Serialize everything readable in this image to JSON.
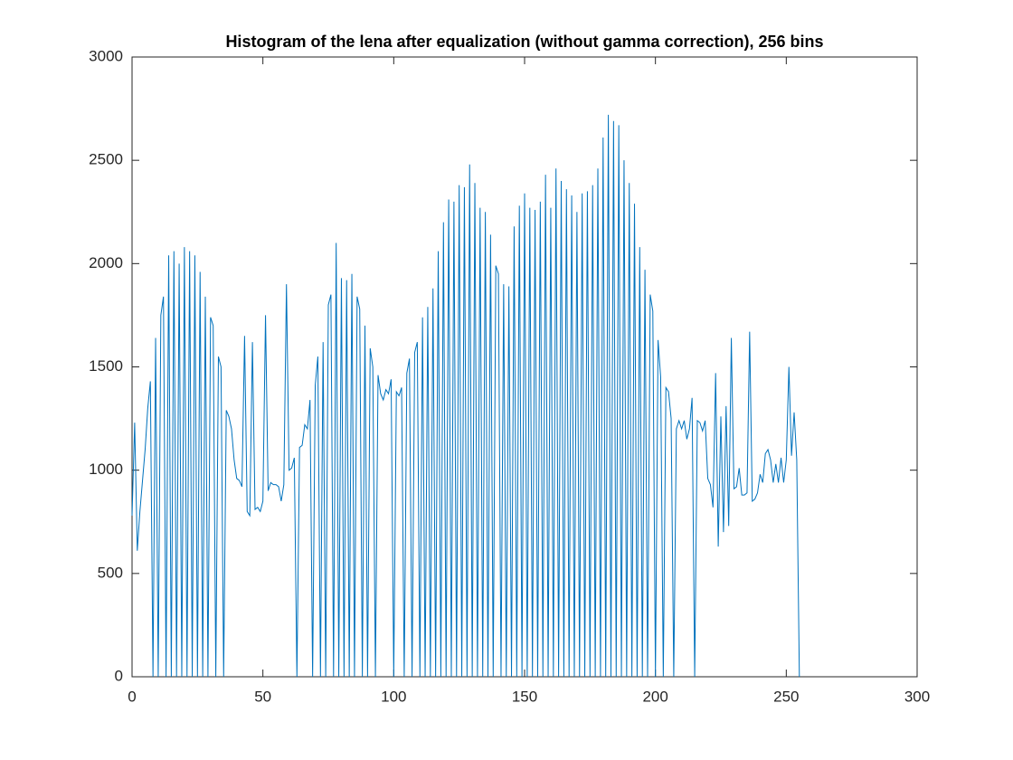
{
  "chart_data": {
    "type": "line",
    "title": "Histogram of the lena after equalization (without gamma correction), 256 bins",
    "x": [
      0,
      1,
      2,
      3,
      4,
      5,
      6,
      7,
      8,
      9,
      10,
      11,
      12,
      13,
      14,
      15,
      16,
      17,
      18,
      19,
      20,
      21,
      22,
      23,
      24,
      25,
      26,
      27,
      28,
      29,
      30,
      31,
      32,
      33,
      34,
      35,
      36,
      37,
      38,
      39,
      40,
      41,
      42,
      43,
      44,
      45,
      46,
      47,
      48,
      49,
      50,
      51,
      52,
      53,
      54,
      55,
      56,
      57,
      58,
      59,
      60,
      61,
      62,
      63,
      64,
      65,
      66,
      67,
      68,
      69,
      70,
      71,
      72,
      73,
      74,
      75,
      76,
      77,
      78,
      79,
      80,
      81,
      82,
      83,
      84,
      85,
      86,
      87,
      88,
      89,
      90,
      91,
      92,
      93,
      94,
      95,
      96,
      97,
      98,
      99,
      100,
      101,
      102,
      103,
      104,
      105,
      106,
      107,
      108,
      109,
      110,
      111,
      112,
      113,
      114,
      115,
      116,
      117,
      118,
      119,
      120,
      121,
      122,
      123,
      124,
      125,
      126,
      127,
      128,
      129,
      130,
      131,
      132,
      133,
      134,
      135,
      136,
      137,
      138,
      139,
      140,
      141,
      142,
      143,
      144,
      145,
      146,
      147,
      148,
      149,
      150,
      151,
      152,
      153,
      154,
      155,
      156,
      157,
      158,
      159,
      160,
      161,
      162,
      163,
      164,
      165,
      166,
      167,
      168,
      169,
      170,
      171,
      172,
      173,
      174,
      175,
      176,
      177,
      178,
      179,
      180,
      181,
      182,
      183,
      184,
      185,
      186,
      187,
      188,
      189,
      190,
      191,
      192,
      193,
      194,
      195,
      196,
      197,
      198,
      199,
      200,
      201,
      202,
      203,
      204,
      205,
      206,
      207,
      208,
      209,
      210,
      211,
      212,
      213,
      214,
      215,
      216,
      217,
      218,
      219,
      220,
      221,
      222,
      223,
      224,
      225,
      226,
      227,
      228,
      229,
      230,
      231,
      232,
      233,
      234,
      235,
      236,
      237,
      238,
      239,
      240,
      241,
      242,
      243,
      244,
      245,
      246,
      247,
      248,
      249,
      250,
      251,
      252,
      253,
      254,
      255
    ],
    "series": [
      {
        "color": "#0072bd",
        "values": [
          780,
          1230,
          610,
          800,
          950,
          1100,
          1300,
          1430,
          0,
          1640,
          0,
          1750,
          1840,
          0,
          2040,
          0,
          2060,
          0,
          2000,
          0,
          2080,
          0,
          2060,
          0,
          2040,
          0,
          1960,
          0,
          1840,
          0,
          1740,
          1700,
          0,
          1550,
          1500,
          0,
          1290,
          1260,
          1200,
          1050,
          960,
          950,
          920,
          1650,
          800,
          780,
          1620,
          810,
          820,
          800,
          850,
          1750,
          900,
          940,
          930,
          930,
          920,
          850,
          930,
          1900,
          1000,
          1010,
          1060,
          0,
          1110,
          1120,
          1220,
          1200,
          1340,
          0,
          1410,
          1550,
          0,
          1620,
          0,
          1800,
          1850,
          0,
          2100,
          0,
          1930,
          0,
          1920,
          0,
          1950,
          0,
          1840,
          1780,
          0,
          1700,
          0,
          1590,
          1500,
          0,
          1460,
          1370,
          1340,
          1390,
          1370,
          1440,
          0,
          1380,
          1360,
          1400,
          0,
          1470,
          1540,
          0,
          1570,
          1620,
          0,
          1740,
          0,
          1790,
          0,
          1880,
          0,
          2060,
          0,
          2200,
          0,
          2310,
          0,
          2300,
          0,
          2380,
          0,
          2370,
          0,
          2480,
          0,
          2390,
          0,
          2270,
          0,
          2250,
          0,
          2140,
          0,
          1990,
          1950,
          0,
          1900,
          0,
          1890,
          0,
          2180,
          0,
          2280,
          0,
          2340,
          0,
          2270,
          0,
          2260,
          0,
          2300,
          0,
          2430,
          0,
          2270,
          0,
          2460,
          0,
          2400,
          0,
          2360,
          0,
          2330,
          0,
          2250,
          0,
          2340,
          0,
          2350,
          0,
          2380,
          0,
          2460,
          0,
          2610,
          0,
          2720,
          0,
          2690,
          0,
          2670,
          0,
          2500,
          0,
          2390,
          0,
          2290,
          0,
          2080,
          0,
          1970,
          0,
          1850,
          1770,
          0,
          1630,
          1450,
          0,
          1400,
          1380,
          1250,
          0,
          1200,
          1240,
          1200,
          1240,
          1150,
          1200,
          1350,
          0,
          1240,
          1230,
          1190,
          1240,
          960,
          930,
          820,
          1470,
          630,
          1260,
          700,
          1310,
          730,
          1640,
          910,
          920,
          1010,
          880,
          880,
          890,
          1670,
          850,
          860,
          890,
          980,
          940,
          1080,
          1100,
          1050,
          940,
          1030,
          940,
          1060,
          940,
          1050,
          1500,
          1070,
          1280,
          1050,
          0
        ]
      }
    ],
    "xlim": [
      0,
      300
    ],
    "xticks": [
      0,
      50,
      100,
      150,
      200,
      250,
      300
    ],
    "ylim": [
      0,
      3000
    ],
    "yticks": [
      0,
      500,
      1000,
      1500,
      2000,
      2500,
      3000
    ],
    "box": true
  }
}
